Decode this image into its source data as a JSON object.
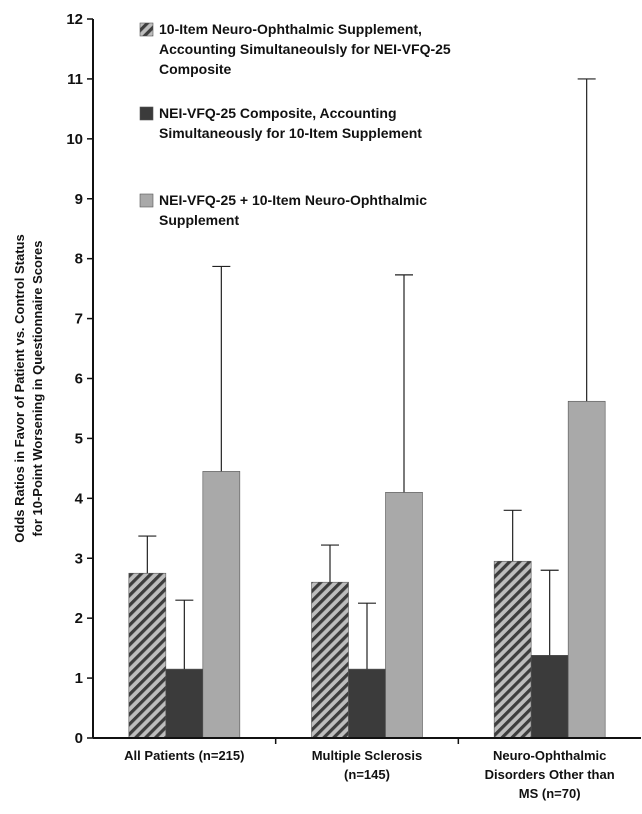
{
  "chart_data": {
    "type": "bar",
    "categories": [
      [
        "All Patients (n=215)"
      ],
      [
        "Multiple Sclerosis",
        "(n=145)"
      ],
      [
        "Neuro-Ophthalmic",
        "Disorders Other than",
        "MS (n=70)"
      ]
    ],
    "ylabel": [
      "Odds Ratios in Favor of Patient vs. Control Status",
      "for 10-Point Worsening in Questionnaire Scores"
    ],
    "ylim": [
      0,
      12
    ],
    "yticks": [
      "0",
      "1",
      "2",
      "3",
      "4",
      "5",
      "6",
      "7",
      "8",
      "9",
      "10",
      "11",
      "12"
    ],
    "legend_position": "top-right",
    "series": [
      {
        "name": [
          "10-Item Neuro-Ophthalmic Supplement,",
          "Accounting Simultaneoulsly for NEI-VFQ-25",
          "Composite"
        ],
        "values": [
          2.75,
          2.6,
          2.95
        ],
        "error_upper": [
          3.37,
          3.22,
          3.8
        ],
        "fill": "hatch"
      },
      {
        "name": [
          "NEI-VFQ-25 Composite, Accounting",
          "Simultaneously for 10-Item Supplement"
        ],
        "values": [
          1.15,
          1.15,
          1.38
        ],
        "error_upper": [
          2.3,
          2.25,
          2.8
        ],
        "fill": "#3b3b3b"
      },
      {
        "name": [
          "NEI-VFQ-25 + 10-Item Neuro-Ophthalmic",
          "Supplement"
        ],
        "values": [
          4.45,
          4.1,
          5.62
        ],
        "error_upper": [
          7.87,
          7.73,
          11.0
        ],
        "fill": "#a9a9a9"
      }
    ]
  }
}
